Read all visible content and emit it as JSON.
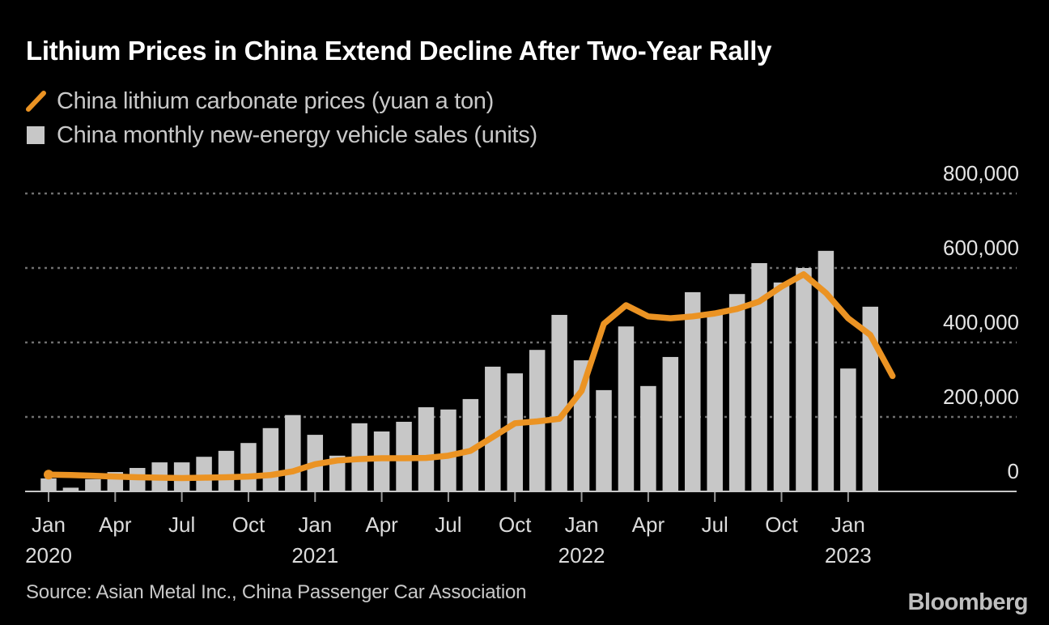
{
  "header": {
    "title": "Lithium Prices in China Extend Decline After Two-Year Rally"
  },
  "legend": [
    {
      "marker": "line-swatch-icon",
      "color": "#EB9323",
      "label": "China lithium carbonate prices (yuan a ton)"
    },
    {
      "marker": "square-swatch-icon",
      "color": "#C7C7C7",
      "label": "China monthly new-energy vehicle sales (units)"
    }
  ],
  "footer": {
    "source": "Source: Asian Metal Inc., China Passenger Car Association",
    "brand": "Bloomberg"
  },
  "colors": {
    "background": "#000000",
    "title": "#ffffff",
    "text": "#c9c9c9",
    "axis_label": "#e4e4e4",
    "bar": "#c7c7c7",
    "line": "#EB9323",
    "grid": "#6f6f6f",
    "baseline": "#c7c7c7",
    "brand": "#bfbfbf"
  },
  "chart_data": {
    "type": "bar+line",
    "title": "Lithium Prices in China Extend Decline After Two-Year Rally",
    "x_months": [
      "Jan 2020",
      "Feb 2020",
      "Mar 2020",
      "Apr 2020",
      "May 2020",
      "Jun 2020",
      "Jul 2020",
      "Aug 2020",
      "Sep 2020",
      "Oct 2020",
      "Nov 2020",
      "Dec 2020",
      "Jan 2021",
      "Feb 2021",
      "Mar 2021",
      "Apr 2021",
      "May 2021",
      "Jun 2021",
      "Jul 2021",
      "Aug 2021",
      "Sep 2021",
      "Oct 2021",
      "Nov 2021",
      "Dec 2021",
      "Jan 2022",
      "Feb 2022",
      "Mar 2022",
      "Apr 2022",
      "May 2022",
      "Jun 2022",
      "Jul 2022",
      "Aug 2022",
      "Sep 2022",
      "Oct 2022",
      "Nov 2022",
      "Dec 2022",
      "Jan 2023",
      "Feb 2023",
      "Mar 2023"
    ],
    "series": [
      {
        "name": "China lithium carbonate prices",
        "unit": "yuan a ton",
        "type": "line",
        "color": "#EB9323",
        "values": [
          45000,
          44000,
          42000,
          40000,
          38000,
          37000,
          36000,
          37000,
          38000,
          40000,
          44000,
          54000,
          73000,
          83000,
          87000,
          89000,
          89000,
          90000,
          96000,
          109000,
          146000,
          183000,
          188000,
          195000,
          270000,
          450000,
          500000,
          470000,
          465000,
          470000,
          478000,
          490000,
          510000,
          550000,
          583000,
          533000,
          465000,
          420000,
          310000
        ]
      },
      {
        "name": "China monthly new-energy vehicle sales",
        "unit": "units",
        "type": "bar",
        "color": "#C7C7C7",
        "values": [
          35000,
          10000,
          33000,
          52000,
          63000,
          78000,
          78000,
          93000,
          109000,
          130000,
          170000,
          205000,
          152000,
          96000,
          183000,
          161000,
          187000,
          226000,
          220000,
          248000,
          335000,
          317000,
          380000,
          474000,
          352000,
          272000,
          443000,
          283000,
          361000,
          535000,
          478000,
          530000,
          613000,
          561000,
          600000,
          646000,
          330000,
          496000,
          null
        ]
      }
    ],
    "y_axis": {
      "side": "right",
      "min": 0,
      "max": 870000,
      "gridlines": "dashed",
      "ticks": [
        {
          "value": 0,
          "label": "0"
        },
        {
          "value": 200000,
          "label": "200,000"
        },
        {
          "value": 400000,
          "label": "400,000"
        },
        {
          "value": 600000,
          "label": "600,000"
        },
        {
          "value": 800000,
          "label": "800,000"
        }
      ]
    },
    "x_axis": {
      "ticks": [
        {
          "month_index": 0,
          "label": "Jan",
          "year": "2020"
        },
        {
          "month_index": 3,
          "label": "Apr"
        },
        {
          "month_index": 6,
          "label": "Jul"
        },
        {
          "month_index": 9,
          "label": "Oct"
        },
        {
          "month_index": 12,
          "label": "Jan",
          "year": "2021"
        },
        {
          "month_index": 15,
          "label": "Apr"
        },
        {
          "month_index": 18,
          "label": "Jul"
        },
        {
          "month_index": 21,
          "label": "Oct"
        },
        {
          "month_index": 24,
          "label": "Jan",
          "year": "2022"
        },
        {
          "month_index": 27,
          "label": "Apr"
        },
        {
          "month_index": 30,
          "label": "Jul"
        },
        {
          "month_index": 33,
          "label": "Oct"
        },
        {
          "month_index": 36,
          "label": "Jan",
          "year": "2023"
        }
      ]
    }
  }
}
